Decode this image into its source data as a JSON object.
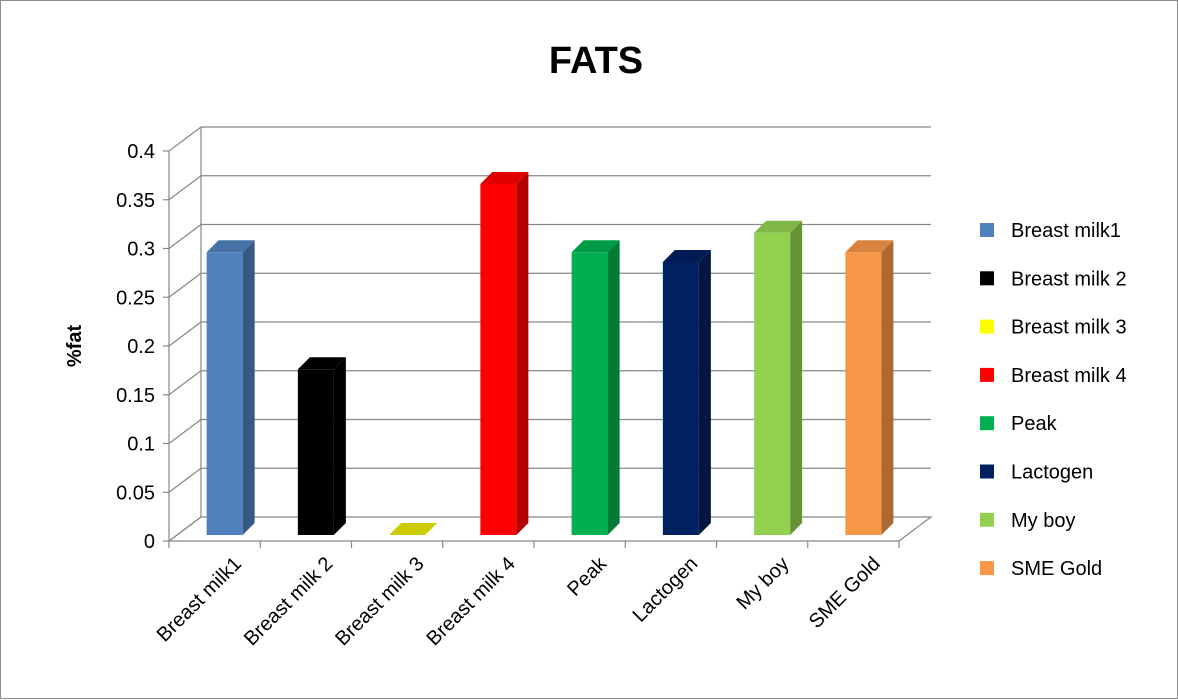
{
  "chart_data": {
    "type": "bar",
    "title": "FATS",
    "xlabel": "",
    "ylabel": "%fat",
    "ylim": [
      0,
      0.4
    ],
    "yticks": [
      "0",
      "0.05",
      "0.1",
      "0.15",
      "0.2",
      "0.25",
      "0.3",
      "0.35",
      "0.4"
    ],
    "grid": true,
    "legend_position": "right",
    "categories": [
      "Breast milk1",
      "Breast milk 2",
      "Breast milk 3",
      "Breast milk 4",
      "Peak",
      "Lactogen",
      "My boy",
      "SME Gold"
    ],
    "values": [
      0.29,
      0.17,
      0,
      0.36,
      0.29,
      0.28,
      0.31,
      0.29
    ],
    "colors": [
      "#4f81bd",
      "#000000",
      "#ffff00",
      "#ff0000",
      "#00b050",
      "#002060",
      "#92d050",
      "#f79646"
    ]
  }
}
